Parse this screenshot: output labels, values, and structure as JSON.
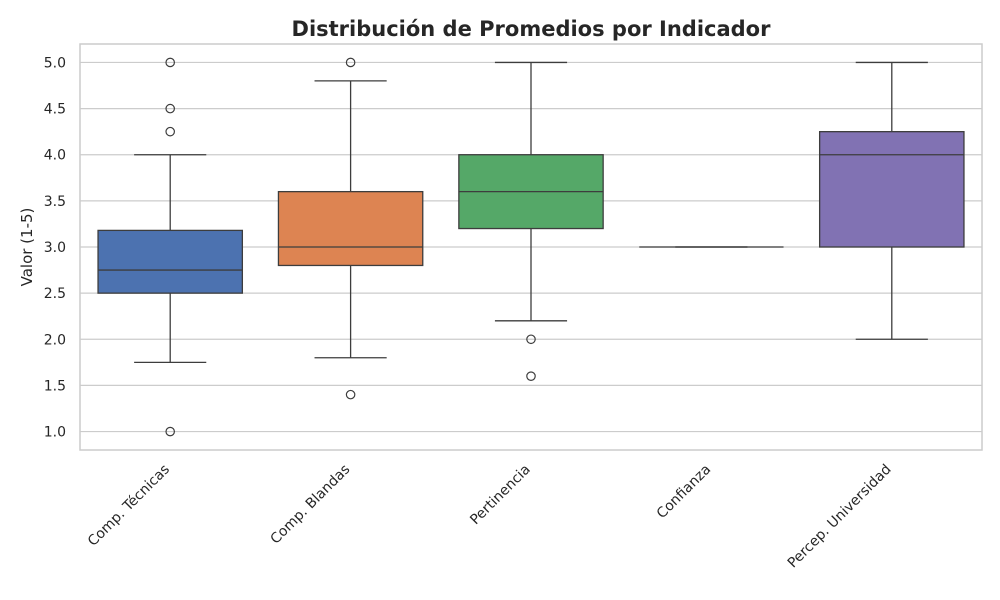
{
  "chart_data": {
    "type": "box",
    "title": "Distribución de Promedios por Indicador",
    "xlabel": "",
    "ylabel": "Valor (1-5)",
    "ylim": [
      0.8,
      5.2
    ],
    "yticks": [
      "1.0",
      "1.5",
      "2.0",
      "2.5",
      "3.0",
      "3.5",
      "4.0",
      "4.5",
      "5.0"
    ],
    "grid": true,
    "categories": [
      "Comp. Técnicas",
      "Comp. Blandas",
      "Pertinencia",
      "Confianza",
      "Percep. Universidad"
    ],
    "colors": [
      "#4c72b0",
      "#dd8452",
      "#55a868",
      "#c44e52",
      "#8172b3"
    ],
    "boxes": [
      {
        "whislo": 1.75,
        "q1": 2.5,
        "med": 2.75,
        "q3": 3.18,
        "whishi": 4.0,
        "fliers": [
          1.0,
          4.25,
          4.5,
          5.0
        ]
      },
      {
        "whislo": 1.8,
        "q1": 2.8,
        "med": 3.0,
        "q3": 3.6,
        "whishi": 4.8,
        "fliers": [
          1.4,
          5.0
        ]
      },
      {
        "whislo": 2.2,
        "q1": 3.2,
        "med": 3.6,
        "q3": 4.0,
        "whishi": 5.0,
        "fliers": [
          1.6,
          2.0
        ]
      },
      {
        "whislo": 3.0,
        "q1": 3.0,
        "med": 3.0,
        "q3": 3.0,
        "whishi": 3.0,
        "fliers": []
      },
      {
        "whislo": 2.0,
        "q1": 3.0,
        "med": 4.0,
        "q3": 4.25,
        "whishi": 5.0,
        "fliers": []
      }
    ]
  }
}
